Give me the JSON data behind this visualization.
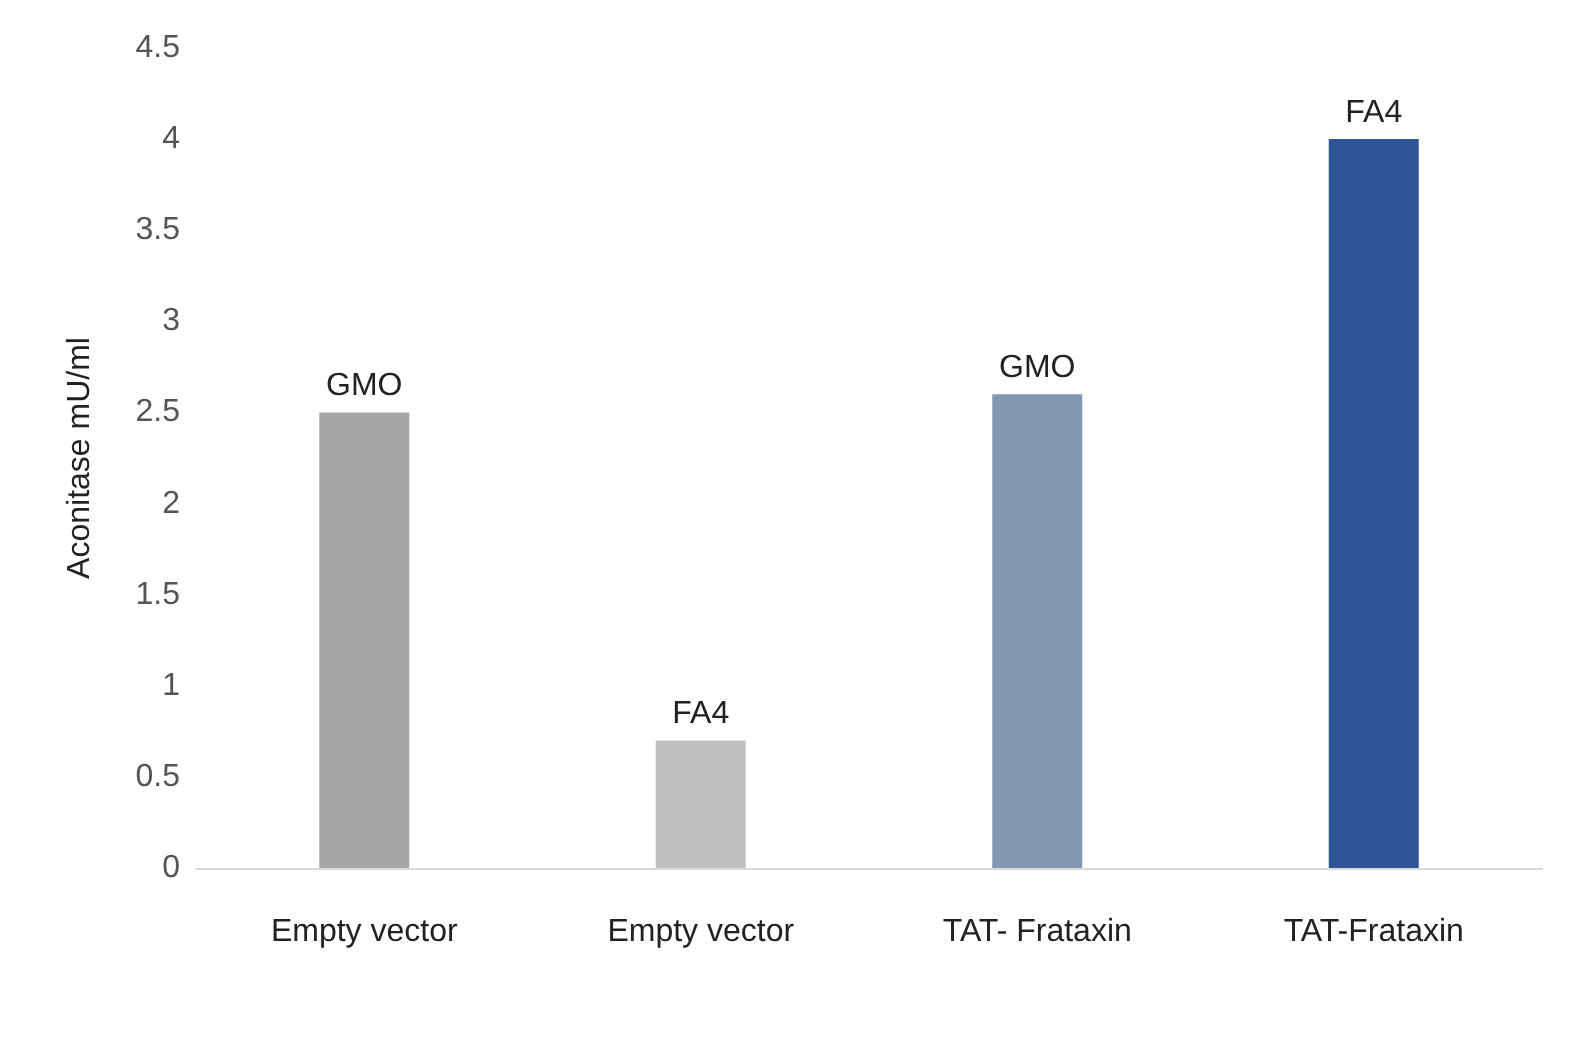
{
  "chart_data": {
    "type": "bar",
    "ylabel": "Aconitase mU/ml",
    "categories": [
      "Empty vector",
      "Empty vector",
      "TAT- Frataxin",
      "TAT-Frataxin"
    ],
    "values": [
      2.5,
      0.7,
      2.6,
      4.0
    ],
    "colors": [
      "#a5a5a5",
      "#bfbfbf",
      "#8497b0",
      "#2f5597"
    ],
    "value_labels": [
      "GMO",
      "FA4",
      "GMO",
      "FA4"
    ],
    "ylim": [
      0,
      4.5
    ],
    "yticks": [
      0,
      0.5,
      1,
      1.5,
      2,
      2.5,
      3,
      3.5,
      4,
      4.5
    ],
    "grid": false
  }
}
